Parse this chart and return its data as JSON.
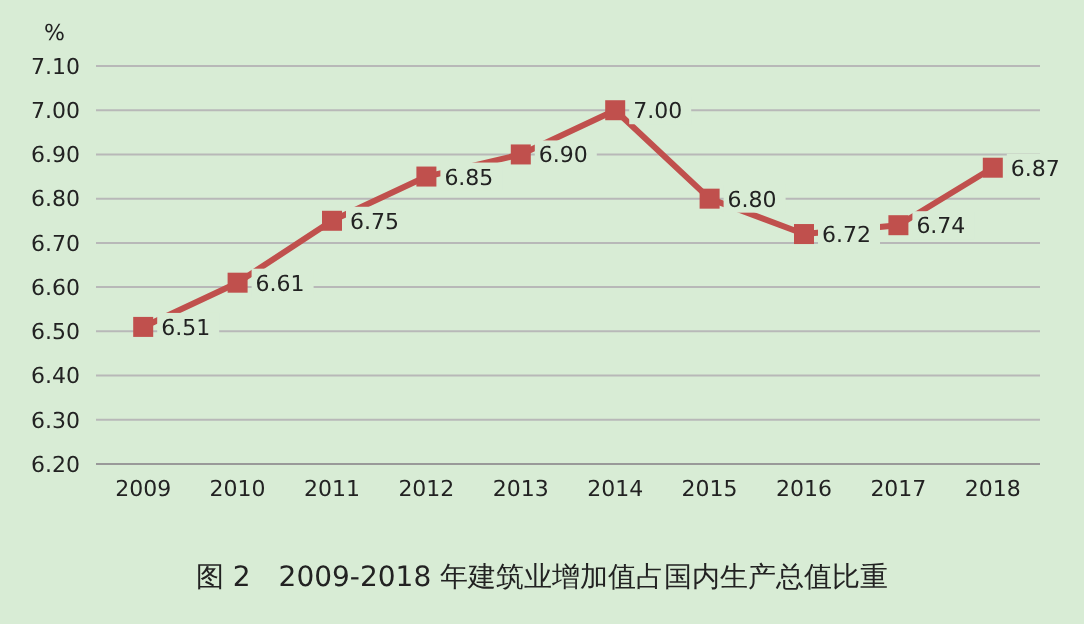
{
  "chart_data": {
    "type": "line",
    "title": "图 2　2009-2018 年建筑业增加值占国内生产总值比重",
    "ylabel": "%",
    "categories": [
      "2009",
      "2010",
      "2011",
      "2012",
      "2013",
      "2014",
      "2015",
      "2016",
      "2017",
      "2018"
    ],
    "series": [
      {
        "color": "#c0504d",
        "values": [
          6.51,
          6.61,
          6.75,
          6.85,
          6.9,
          7.0,
          6.8,
          6.72,
          6.74,
          6.87
        ],
        "value_labels": [
          "6.51",
          "6.61",
          "6.75",
          "6.85",
          "6.90",
          "7.00",
          "6.80",
          "6.72",
          "6.74",
          "6.87"
        ]
      }
    ],
    "ylim": [
      6.2,
      7.1
    ],
    "yticks": [
      {
        "value": 6.2,
        "label": "6.20"
      },
      {
        "value": 6.3,
        "label": "6.30"
      },
      {
        "value": 6.4,
        "label": "6.40"
      },
      {
        "value": 6.5,
        "label": "6.50"
      },
      {
        "value": 6.6,
        "label": "6.60"
      },
      {
        "value": 6.7,
        "label": "6.70"
      },
      {
        "value": 6.8,
        "label": "6.80"
      },
      {
        "value": 6.9,
        "label": "6.90"
      },
      {
        "value": 7.0,
        "label": "7.00"
      },
      {
        "value": 7.1,
        "label": "7.10"
      }
    ],
    "grid": "y",
    "marker": "square",
    "line_style": "solid",
    "legend": false
  }
}
